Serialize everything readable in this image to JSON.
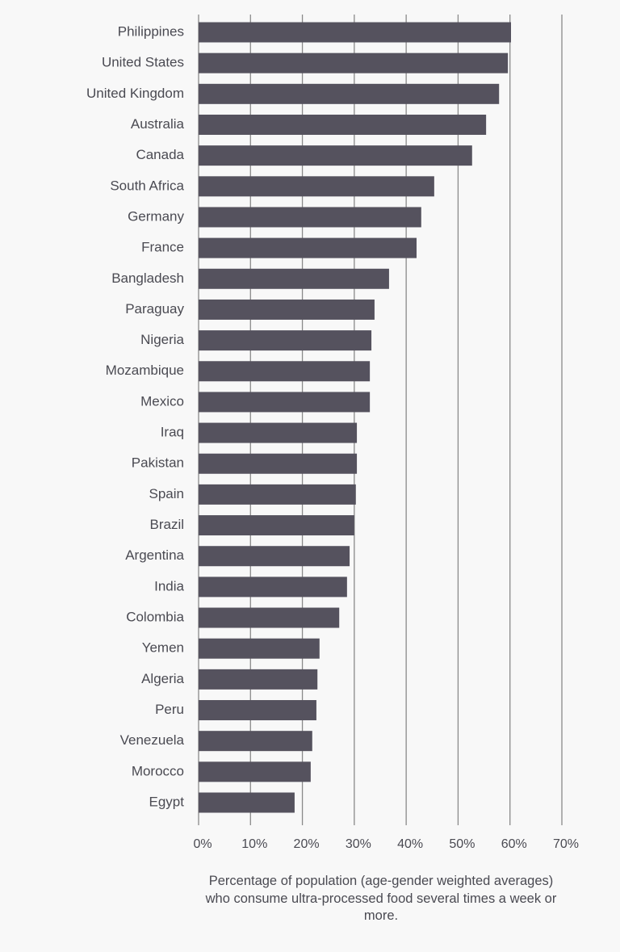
{
  "chart_data": {
    "type": "barh",
    "categories": [
      "Philippines",
      "United States",
      "United Kingdom",
      "Australia",
      "Canada",
      "South Africa",
      "Germany",
      "France",
      "Bangladesh",
      "Paraguay",
      "Nigeria",
      "Mozambique",
      "Mexico",
      "Iraq",
      "Pakistan",
      "Spain",
      "Brazil",
      "Argentina",
      "India",
      "Colombia",
      "Yemen",
      "Algeria",
      "Peru",
      "Venezuela",
      "Morocco",
      "Egypt"
    ],
    "values": [
      60.2,
      59.6,
      57.9,
      55.4,
      52.7,
      45.4,
      42.9,
      42.0,
      36.7,
      33.9,
      33.3,
      33.0,
      33.0,
      30.5,
      30.5,
      30.3,
      30.0,
      29.1,
      28.6,
      27.1,
      23.3,
      22.9,
      22.7,
      21.9,
      21.6,
      18.5
    ],
    "color": "#55525e",
    "xlim": [
      0,
      70
    ],
    "xticks": [
      {
        "value": 0,
        "label": "0%"
      },
      {
        "value": 10,
        "label": "10%"
      },
      {
        "value": 20,
        "label": "20%"
      },
      {
        "value": 30,
        "label": "30%"
      },
      {
        "value": 40,
        "label": "40%"
      },
      {
        "value": 50,
        "label": "50%"
      },
      {
        "value": 60,
        "label": "60%"
      },
      {
        "value": 70,
        "label": "70%"
      }
    ],
    "xlabel": "Percentage of population (age-gender weighted averages) who consume ultra-processed food several times a week or more.",
    "grid": true
  }
}
